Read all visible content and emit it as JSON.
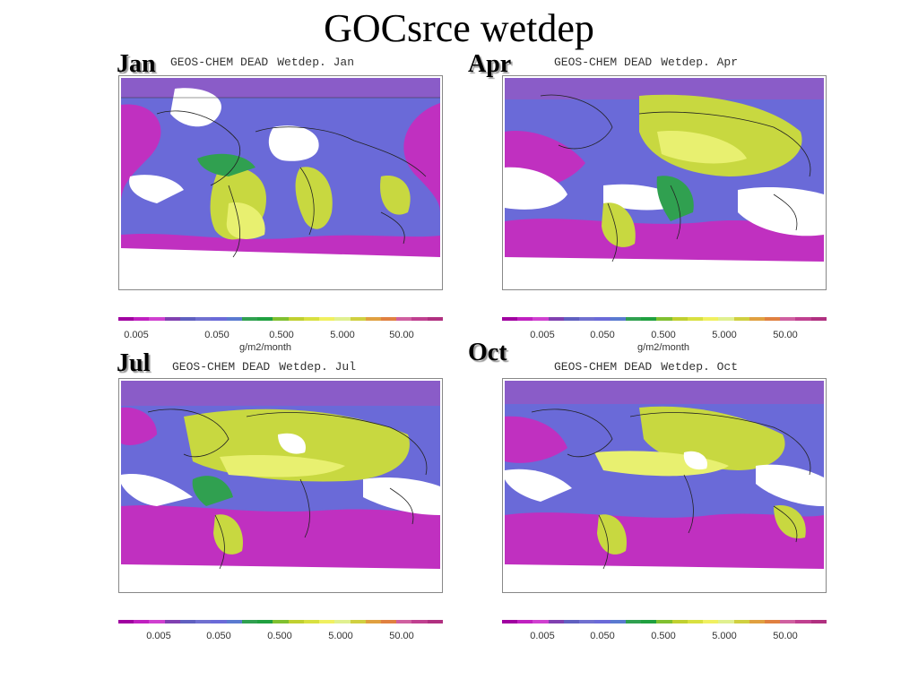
{
  "title": "GOCsrce wetdep",
  "colors": [
    "#a000a0",
    "#c020c0",
    "#d040d0",
    "#8040b0",
    "#6060c0",
    "#7070d0",
    "#6a6ad8",
    "#5a7ad0",
    "#30a050",
    "#20a040",
    "#80c030",
    "#c0d030",
    "#d8e040",
    "#f0f060",
    "#e0f090",
    "#d0d040",
    "#e0a040",
    "#e08040",
    "#d060a0",
    "#c04090",
    "#b03080"
  ],
  "panels": [
    {
      "id": "jan",
      "label": "Jan",
      "model": "GEOS-CHEM DEAD",
      "var": "Wetdep. Jan",
      "ticks": [
        "0.005",
        "0.050",
        "0.500",
        "5.000",
        "50.00"
      ],
      "units": "g/m2/month"
    },
    {
      "id": "apr",
      "label": "Apr",
      "model": "GEOS-CHEM DEAD",
      "var": "Wetdep. Apr",
      "ticks": [
        "0.005",
        "0.050",
        "0.500",
        "5.000",
        "50.00"
      ],
      "units": "g/m2/month"
    },
    {
      "id": "jul",
      "label": "Jul",
      "model": "GEOS-CHEM DEAD",
      "var": "Wetdep. Jul",
      "ticks": [
        "0.005",
        "0.050",
        "0.500",
        "5.000",
        "50.00"
      ],
      "units": ""
    },
    {
      "id": "oct",
      "label": "Oct",
      "model": "GEOS-CHEM DEAD",
      "var": "Wetdep. Oct",
      "ticks": [
        "0.005",
        "0.050",
        "0.500",
        "5.000",
        "50.00"
      ],
      "units": ""
    }
  ]
}
